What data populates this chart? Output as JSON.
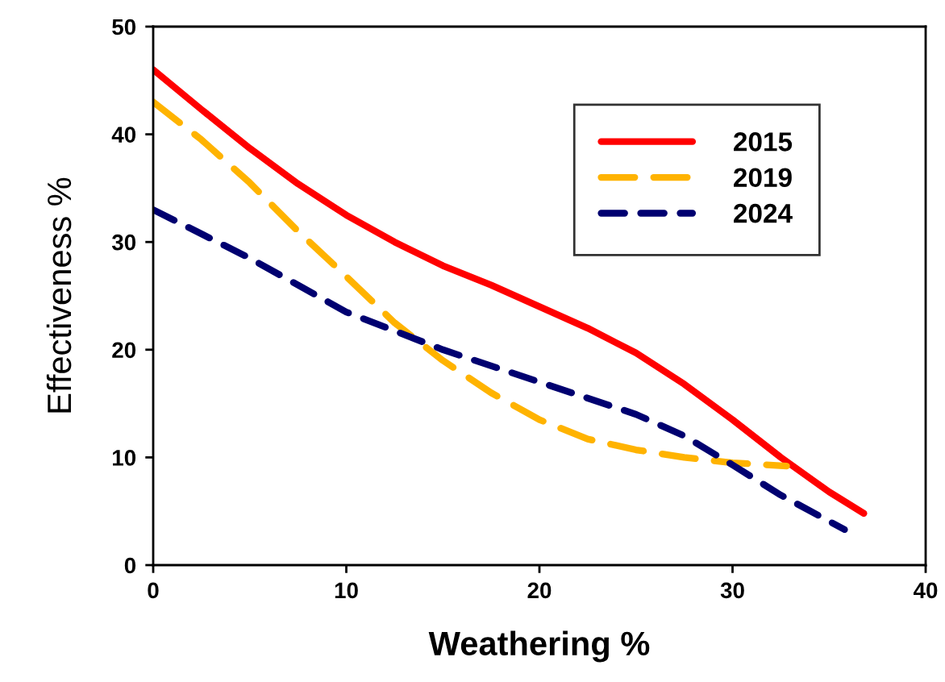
{
  "chart_data": {
    "type": "line",
    "xlabel": "Weathering %",
    "ylabel": "Effectiveness %",
    "xlim": [
      0,
      40
    ],
    "ylim": [
      0,
      50
    ],
    "xticks": [
      0,
      10,
      20,
      30,
      40
    ],
    "yticks": [
      0,
      10,
      20,
      30,
      40,
      50
    ],
    "grid": false,
    "legend": "top right",
    "marker": "none",
    "series": [
      {
        "name": "2015",
        "color": "#ff0000",
        "line_style": "solid",
        "x": [
          0,
          2.5,
          5,
          7.5,
          10,
          12.5,
          15,
          17.5,
          20,
          22.5,
          25,
          27.5,
          30,
          32.5,
          35,
          36.8
        ],
        "values": [
          46,
          42.3,
          38.7,
          35.4,
          32.5,
          30,
          27.8,
          26,
          24,
          22,
          19.7,
          16.8,
          13.5,
          10,
          6.8,
          4.8
        ]
      },
      {
        "name": "2019",
        "color": "#ffb300",
        "line_style": "dashed",
        "x": [
          0,
          2.5,
          5,
          7.5,
          10,
          12.5,
          15,
          17.5,
          20,
          22.5,
          25,
          27.5,
          30,
          32.8
        ],
        "values": [
          43,
          39.5,
          35.5,
          31,
          26.8,
          22.5,
          19,
          16,
          13.5,
          11.7,
          10.7,
          10,
          9.5,
          9.2
        ]
      },
      {
        "name": "2024",
        "color": "#000070",
        "line_style": "dashed",
        "x": [
          0,
          5,
          10,
          15,
          20,
          25,
          27.5,
          30,
          32.5,
          35.8
        ],
        "values": [
          33,
          28.5,
          23.5,
          20,
          17,
          14,
          12,
          9.3,
          6.5,
          3.3
        ]
      }
    ]
  }
}
